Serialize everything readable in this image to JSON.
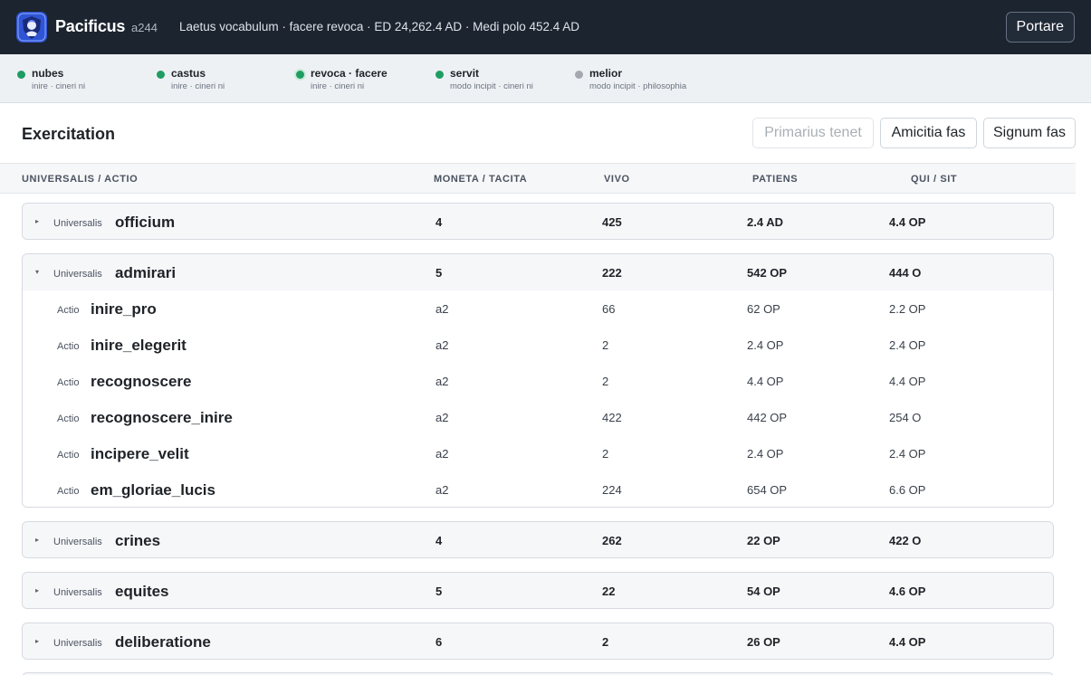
{
  "header": {
    "brand": "Pacificus",
    "brand_id": "a244",
    "info": "Laetus vocabulum · facere revoca · ED 24,262.4 AD · Medi polo 452.4 AD",
    "button": "Portare",
    "logo_icon": "shield-logo-icon"
  },
  "status": [
    {
      "name": "nubes",
      "sub": "inire · cineri ni",
      "color": "#1f9d63"
    },
    {
      "name": "castus",
      "sub": "inire · cineri ni",
      "color": "#1f9d63"
    },
    {
      "name": "revoca · facere",
      "sub": "inire · cineri ni",
      "color": "#1f9d63"
    },
    {
      "name": "servit",
      "sub": "modo incipit · cineri ni",
      "color": "#1f9d63"
    },
    {
      "name": "melior",
      "sub": "modo incipit · philosophia",
      "color": "#a4a9b0"
    }
  ],
  "section": {
    "title": "Exercitation",
    "buttons": [
      "Primarius tenet",
      "Amicitia fas",
      "Signum fas"
    ]
  },
  "table": {
    "headers": [
      "UNIVERSALIS / ACTIO",
      "MONETA / TACITA",
      "VIVO",
      "PATIENS",
      "QUI / SIT"
    ],
    "groups": [
      {
        "kind": "Universalis",
        "name": "officium",
        "c1": "4",
        "c2": "425",
        "c3": "2.4 AD",
        "c4": "4.4 OP",
        "open": false,
        "actions": []
      },
      {
        "kind": "Universalis",
        "name": "admirari",
        "c1": "5",
        "c2": "222",
        "c3": "542 OP",
        "c4": "444 O",
        "open": true,
        "actions": [
          {
            "kind": "Actio",
            "name": "inire_pro",
            "c1": "a2",
            "c2": "66",
            "c3": "62 OP",
            "c4": "2.2 OP"
          },
          {
            "kind": "Actio",
            "name": "inire_elegerit",
            "c1": "a2",
            "c2": "2",
            "c3": "2.4 OP",
            "c4": "2.4 OP"
          },
          {
            "kind": "Actio",
            "name": "recognoscere",
            "c1": "a2",
            "c2": "2",
            "c3": "4.4 OP",
            "c4": "4.4 OP"
          },
          {
            "kind": "Actio",
            "name": "recognoscere_inire",
            "c1": "a2",
            "c2": "422",
            "c3": "442 OP",
            "c4": "254 O"
          },
          {
            "kind": "Actio",
            "name": "incipere_velit",
            "c1": "a2",
            "c2": "2",
            "c3": "2.4 OP",
            "c4": "2.4 OP"
          },
          {
            "kind": "Actio",
            "name": "em_gloriae_lucis",
            "c1": "a2",
            "c2": "224",
            "c3": "654 OP",
            "c4": "6.6 OP"
          }
        ]
      },
      {
        "kind": "Universalis",
        "name": "crines",
        "c1": "4",
        "c2": "262",
        "c3": "22 OP",
        "c4": "422 O",
        "open": false,
        "actions": []
      },
      {
        "kind": "Universalis",
        "name": "equites",
        "c1": "5",
        "c2": "22",
        "c3": "54 OP",
        "c4": "4.6 OP",
        "open": false,
        "actions": []
      },
      {
        "kind": "Universalis",
        "name": "deliberatione",
        "c1": "6",
        "c2": "2",
        "c3": "26 OP",
        "c4": "4.4 OP",
        "open": false,
        "actions": []
      }
    ]
  }
}
